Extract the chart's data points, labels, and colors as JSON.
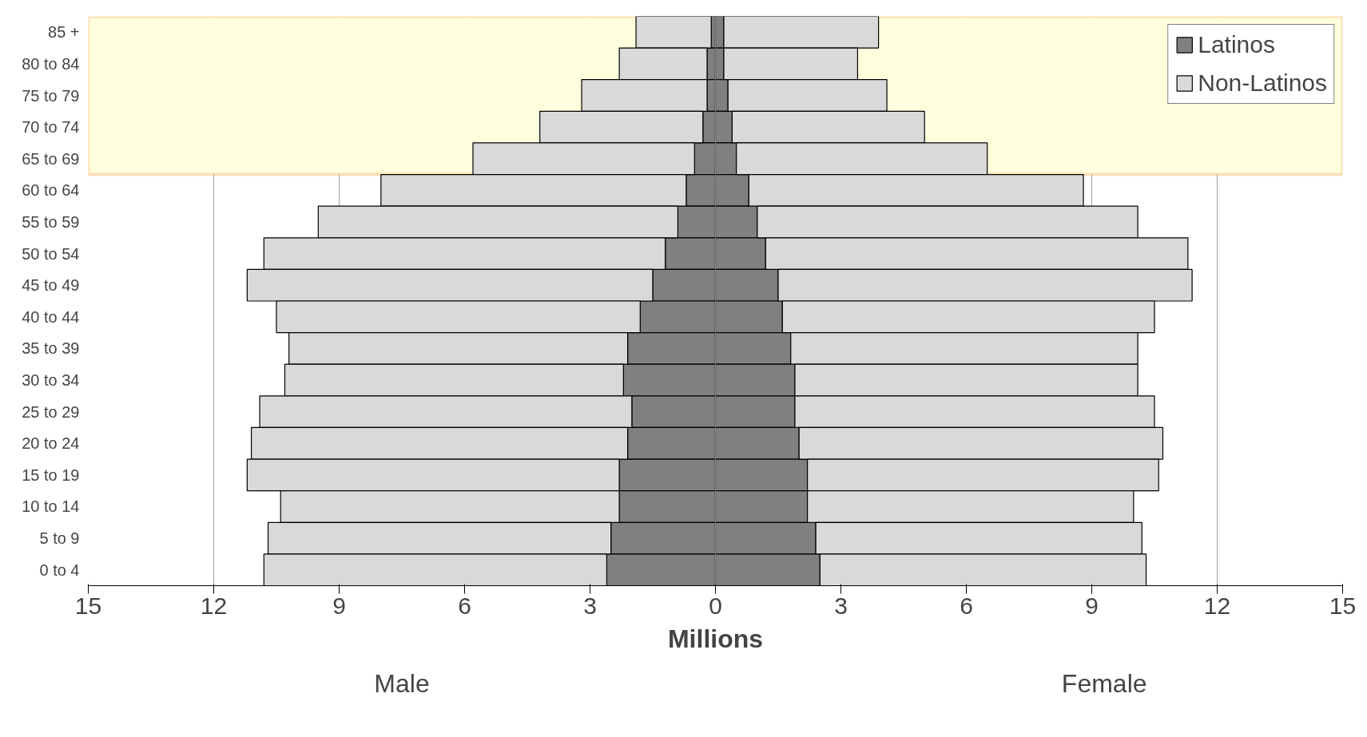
{
  "chart_data": {
    "type": "bar",
    "orientation": "horizontal",
    "stacked": true,
    "xlabel": "Millions",
    "annotations": [
      "Male",
      "Female"
    ],
    "categories": [
      "85 +",
      "80 to 84",
      "75 to 79",
      "70 to 74",
      "65 to 69",
      "60 to 64",
      "55 to 59",
      "50 to 54",
      "45 to 49",
      "40 to 44",
      "35 to 39",
      "30 to 34",
      "25 to 29",
      "20 to 24",
      "15 to 19",
      "10 to 14",
      "5 to 9",
      "0 to 4"
    ],
    "series": [
      {
        "name": "Latinos",
        "color": "#808080",
        "values": [
          -0.1,
          -0.2,
          -0.2,
          -0.3,
          -0.5,
          -0.7,
          -0.9,
          -1.2,
          -1.5,
          -1.8,
          -2.1,
          -2.2,
          -2.0,
          -2.1,
          -2.3,
          -2.3,
          -2.5,
          -2.6
        ]
      },
      {
        "color": "#808080",
        "values": [
          0.2,
          0.2,
          0.3,
          0.4,
          0.5,
          0.8,
          1.0,
          1.2,
          1.5,
          1.6,
          1.8,
          1.9,
          1.9,
          2.0,
          2.2,
          2.2,
          2.4,
          2.5
        ]
      },
      {
        "name": "Non-Latinos",
        "color": "#d9d9d9",
        "values": [
          -1.8,
          -2.1,
          -3.0,
          -3.9,
          -5.3,
          -7.3,
          -8.6,
          -9.6,
          -9.7,
          -8.7,
          -8.1,
          -8.1,
          -8.9,
          -9.0,
          -8.9,
          -8.1,
          -8.2,
          -8.2
        ]
      },
      {
        "color": "#d9d9d9",
        "values": [
          3.7,
          3.2,
          3.8,
          4.6,
          6.0,
          8.0,
          9.1,
          10.1,
          9.9,
          8.9,
          8.3,
          8.2,
          8.6,
          8.7,
          8.4,
          7.8,
          7.8,
          7.8
        ]
      }
    ],
    "xlim": [
      -15,
      15
    ],
    "xticks": [
      {
        "value": -15,
        "label": "15"
      },
      {
        "value": -12,
        "label": "12"
      },
      {
        "value": -9,
        "label": "9"
      },
      {
        "value": -6,
        "label": "6"
      },
      {
        "value": -3,
        "label": "3"
      },
      0,
      3,
      6,
      9,
      12,
      15
    ],
    "bands": [
      {
        "axis": "y",
        "from": "65 to 69",
        "to": "85 +",
        "color": "#ffffdd"
      }
    ],
    "grid": "x",
    "legend": "top right"
  }
}
